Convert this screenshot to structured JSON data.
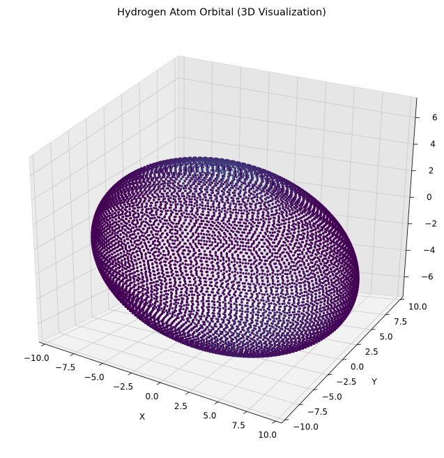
{
  "chart_data": {
    "type": "scatter",
    "title": "Hydrogen Atom Orbital (3D Visualization)",
    "xlabel": "X",
    "ylabel": "Y",
    "zlabel": "",
    "xlim": [
      -10.5,
      10.5
    ],
    "ylim": [
      -10.5,
      10.5
    ],
    "zlim": [
      -7.5,
      7.5
    ],
    "x_ticks": [
      {
        "value": -10.0,
        "label": "−10.0"
      },
      {
        "value": -7.5,
        "label": "−7.5"
      },
      {
        "value": -5.0,
        "label": "−5.0"
      },
      {
        "value": -2.5,
        "label": "−2.5"
      },
      {
        "value": 0.0,
        "label": "0.0"
      },
      {
        "value": 2.5,
        "label": "2.5"
      },
      {
        "value": 5.0,
        "label": "5.0"
      },
      {
        "value": 7.5,
        "label": "7.5"
      },
      {
        "value": 10.0,
        "label": "10.0"
      }
    ],
    "y_ticks": [
      {
        "value": -10.0,
        "label": "−10.0"
      },
      {
        "value": -7.5,
        "label": "−7.5"
      },
      {
        "value": -5.0,
        "label": "−5.0"
      },
      {
        "value": -2.5,
        "label": "−2.5"
      },
      {
        "value": 0.0,
        "label": "0.0"
      },
      {
        "value": 2.5,
        "label": "2.5"
      },
      {
        "value": 5.0,
        "label": "5.0"
      },
      {
        "value": 7.5,
        "label": "7.5"
      },
      {
        "value": 10.0,
        "label": "10.0"
      }
    ],
    "z_ticks": [
      {
        "value": -6,
        "label": "−6"
      },
      {
        "value": -4,
        "label": "−4"
      },
      {
        "value": -2,
        "label": "−2"
      },
      {
        "value": 0,
        "label": "0"
      },
      {
        "value": 2,
        "label": "2"
      },
      {
        "value": 4,
        "label": "4"
      },
      {
        "value": 6,
        "label": "6"
      }
    ],
    "grid": true,
    "colormap": "viridis",
    "surface": {
      "shape": "ellipsoid",
      "radius_x": 10,
      "radius_y": 10,
      "radius_z": 7
    },
    "colors": {
      "low": "#440154",
      "high": "#3b528b",
      "pane_floor": "#f2f2f2",
      "pane_left": "#ebebeb",
      "pane_right": "#e6e6e6"
    }
  }
}
